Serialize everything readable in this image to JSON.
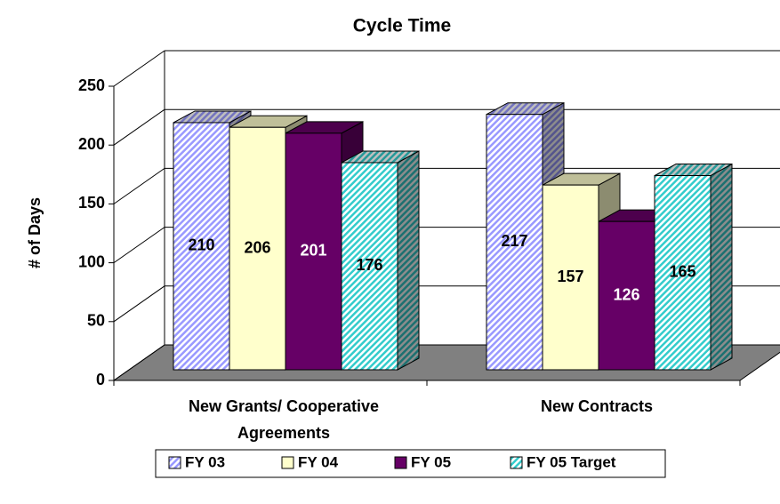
{
  "chart_data": {
    "type": "bar3d",
    "title": "Cycle Time",
    "y_label": "# of Days",
    "categories": [
      "New Grants/ Cooperative Agreements",
      "New Contracts"
    ],
    "series": [
      {
        "name": "FY 03",
        "color": "#9999ff",
        "hatch": true,
        "values": [
          210,
          217
        ]
      },
      {
        "name": "FY 04",
        "color": "#ffffcc",
        "hatch": false,
        "values": [
          206,
          157
        ]
      },
      {
        "name": "FY 05",
        "color": "#660066",
        "hatch": false,
        "values": [
          201,
          126
        ]
      },
      {
        "name": "FY 05 Target",
        "color": "#33cccc",
        "hatch": true,
        "values": [
          176,
          165
        ]
      }
    ],
    "ylim": [
      0,
      250
    ],
    "yticks": [
      0,
      50,
      100,
      150,
      200,
      250
    ],
    "grid": true,
    "legend": "bottom"
  }
}
